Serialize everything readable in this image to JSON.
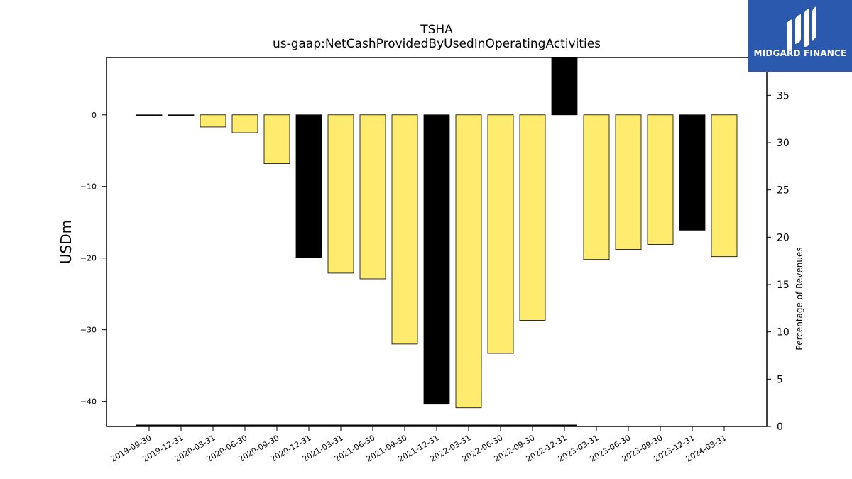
{
  "chart_data": {
    "type": "bar",
    "title": "TSHA",
    "subtitle": "us-gaap:NetCashProvidedByUsedInOperatingActivities",
    "ylabel": "USDm",
    "ylabel_right": "Percentage of Revenues",
    "ylim": [
      -43.5,
      8
    ],
    "ylim_right": [
      0,
      39
    ],
    "yticks": [
      0,
      -10,
      -20,
      -30,
      -40
    ],
    "yticks_right": [
      0,
      5,
      10,
      15,
      20,
      25,
      30,
      35
    ],
    "categories": [
      "2019-09-30",
      "2019-12-31",
      "2020-03-31",
      "2020-06-30",
      "2020-09-30",
      "2020-12-31",
      "2021-03-31",
      "2021-06-30",
      "2021-09-30",
      "2021-12-31",
      "2022-03-31",
      "2022-06-30",
      "2022-09-30",
      "2022-12-31",
      "2023-03-31",
      "2023-06-30",
      "2023-09-30",
      "2023-12-31",
      "2024-03-31"
    ],
    "values": [
      0,
      0,
      -1.7,
      -2.5,
      -6.8,
      -19.9,
      -22.1,
      -22.9,
      -32.0,
      -40.4,
      -40.9,
      -33.3,
      -28.7,
      8.5,
      -20.2,
      -18.8,
      -18.1,
      -16.1,
      -19.8
    ],
    "highlight": [
      false,
      false,
      false,
      false,
      false,
      true,
      false,
      false,
      false,
      true,
      false,
      false,
      false,
      true,
      false,
      false,
      false,
      true,
      false
    ],
    "colors": {
      "bar": "#ffec6e",
      "highlight_bar": "#000000",
      "edge": "#000000"
    },
    "grid": false
  },
  "logo": {
    "text": "MIDGARD FINANCE",
    "bg": "#2b59ad"
  }
}
